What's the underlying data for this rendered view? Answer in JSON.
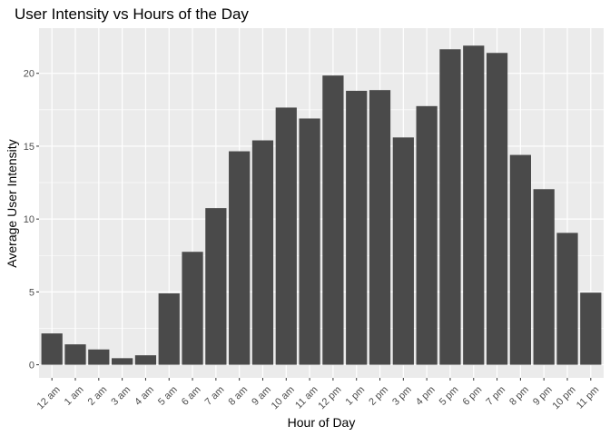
{
  "chart_data": {
    "type": "bar",
    "title": "User Intensity vs Hours of the Day",
    "xlabel": "Hour of Day",
    "ylabel": "Average User Intensity",
    "categories": [
      "12 am",
      "1 am",
      "2 am",
      "3 am",
      "4 am",
      "5 am",
      "6 am",
      "7 am",
      "8 am",
      "9 am",
      "10 am",
      "11 am",
      "12 pm",
      "1 pm",
      "2 pm",
      "3 pm",
      "4 pm",
      "5 pm",
      "6 pm",
      "7 pm",
      "8 pm",
      "9 pm",
      "10 pm",
      "11 pm"
    ],
    "values": [
      2.15,
      1.4,
      1.05,
      0.45,
      0.65,
      4.9,
      7.75,
      10.75,
      14.65,
      15.4,
      17.65,
      16.9,
      19.85,
      18.8,
      18.85,
      15.6,
      17.75,
      21.65,
      21.9,
      21.4,
      14.4,
      12.05,
      9.05,
      4.95
    ],
    "ylim": [
      -0.9,
      23.1
    ],
    "yticks": [
      0,
      5,
      10,
      15,
      20
    ],
    "grid": true,
    "legend": "none",
    "colors": {
      "panel": "#ebebeb",
      "grid": "#ffffff",
      "bar": "#4a4a4a",
      "text": "#4d4d4d"
    }
  }
}
